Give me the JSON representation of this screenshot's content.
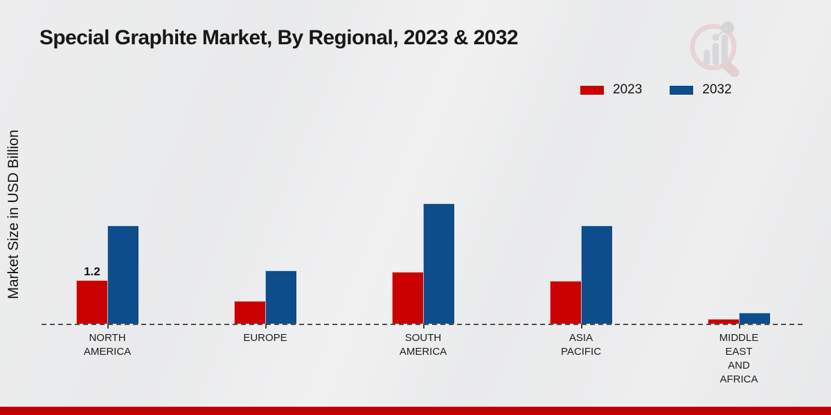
{
  "page": {
    "footer_accent_color": "#c00000"
  },
  "watermark_icon": "magnifier-bar-chart-icon",
  "chart_data": {
    "type": "bar",
    "title": "Special Graphite Market, By Regional, 2023 & 2032",
    "ylabel": "Market Size in USD Billion",
    "xlabel": "",
    "categories": [
      "NORTH AMERICA",
      "EUROPE",
      "SOUTH AMERICA",
      "ASIA PACIFIC",
      "MIDDLE EAST AND AFRICA"
    ],
    "series": [
      {
        "name": "2023",
        "color": "#c90101",
        "values": [
          1.2,
          0.63,
          1.43,
          1.18,
          0.13
        ],
        "value_labels": [
          "1.2",
          "",
          "",
          "",
          ""
        ]
      },
      {
        "name": "2032",
        "color": "#0d4d8c",
        "values": [
          2.71,
          1.47,
          3.31,
          2.7,
          0.31
        ],
        "value_labels": [
          "",
          "",
          "",
          "",
          ""
        ]
      }
    ],
    "ylim": [
      0,
      3.5
    ],
    "grid": false,
    "legend_position": "top-right",
    "baseline_style": "dashed",
    "y_axis_ticks_visible": false
  }
}
